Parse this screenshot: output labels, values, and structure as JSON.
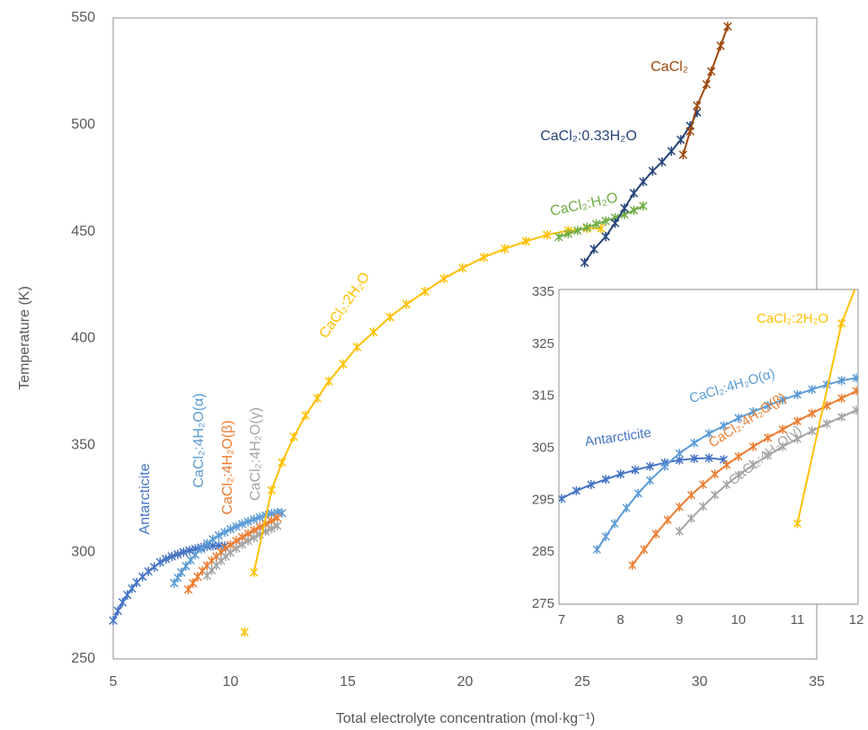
{
  "chart_data": [
    {
      "type": "scatter-line",
      "x_label": "Total electrolyte concentration (mol·kg⁻¹)",
      "y_label": "Temperature (K)",
      "xlim": [
        5,
        35
      ],
      "xticks": [
        5,
        10,
        15,
        20,
        25,
        30,
        35
      ],
      "ylim": [
        250,
        550
      ],
      "yticks": [
        250,
        300,
        350,
        400,
        450,
        500,
        550
      ],
      "series": [
        {
          "name": "Antarcticite",
          "color": "#4472c4",
          "x": [
            5.0,
            5.2,
            5.4,
            5.6,
            5.8,
            6.0,
            6.25,
            6.5,
            6.75,
            7.0,
            7.25,
            7.5,
            7.75,
            8.0,
            8.25,
            8.5,
            8.75,
            9.0,
            9.25,
            9.5,
            9.75
          ],
          "values": [
            268,
            272.5,
            276.5,
            280,
            283,
            285.8,
            288.5,
            291,
            293,
            295.3,
            296.8,
            298,
            299,
            300,
            300.8,
            301.5,
            302.2,
            302.7,
            303,
            303.1,
            302.8
          ]
        },
        {
          "name": "CaCl₂:4H₂O(α)",
          "color": "#5b9bd5",
          "x": [
            7.6,
            7.75,
            7.9,
            8.1,
            8.3,
            8.5,
            8.75,
            9.0,
            9.25,
            9.5,
            9.75,
            10.0,
            10.25,
            10.5,
            10.75,
            11.0,
            11.25,
            11.5,
            11.75,
            12.0,
            12.2
          ],
          "values": [
            285.5,
            288,
            290.5,
            293.5,
            296.3,
            298.8,
            301.5,
            304,
            306,
            307.8,
            309.3,
            310.8,
            312,
            313.2,
            314.3,
            315.3,
            316.3,
            317.2,
            318,
            318.5,
            318.3
          ]
        },
        {
          "name": "CaCl₂:4H₂O(β)",
          "color": "#ed7d31",
          "x": [
            8.2,
            8.4,
            8.6,
            8.8,
            9.0,
            9.2,
            9.4,
            9.6,
            9.8,
            10.0,
            10.25,
            10.5,
            10.75,
            11.0,
            11.25,
            11.5,
            11.75,
            12.0
          ],
          "values": [
            282.5,
            285.5,
            288.5,
            291.2,
            293.7,
            296,
            298,
            300,
            301.8,
            303.4,
            305.3,
            307,
            308.6,
            310.2,
            311.7,
            313.2,
            314.6,
            316
          ]
        },
        {
          "name": "CaCl₂:4H₂O(γ)",
          "color": "#a5a5a5",
          "x": [
            9.0,
            9.2,
            9.4,
            9.6,
            9.8,
            10.0,
            10.25,
            10.5,
            10.75,
            11.0,
            11.25,
            11.5,
            11.75,
            12.0
          ],
          "values": [
            289,
            291.5,
            293.8,
            296,
            298,
            299.8,
            301.8,
            303.6,
            305.3,
            306.8,
            308.3,
            309.7,
            311,
            312.3
          ]
        },
        {
          "name": "CaCl₂:2H₂O",
          "color": "#ffc000",
          "x": [
            10.6,
            null,
            11.0,
            11.75,
            12.2,
            12.7,
            13.2,
            13.7,
            14.2,
            14.8,
            15.4,
            16.1,
            16.8,
            17.5,
            18.3,
            19.1,
            19.9,
            20.8,
            21.7,
            22.6,
            23.5,
            24.4,
            25.2,
            25.8
          ],
          "values": [
            262.6,
            null,
            290.5,
            329,
            342,
            354,
            364,
            372,
            380,
            388,
            396,
            403,
            410,
            416,
            422,
            428,
            433,
            438,
            442,
            445.5,
            448.5,
            450.5,
            451.5,
            451.5
          ]
        },
        {
          "name": "CaCl₂:H₂O",
          "color": "#70ad47",
          "x": [
            24.0,
            24.4,
            24.8,
            25.2,
            25.6,
            26.0,
            26.4,
            26.8,
            27.2,
            27.6
          ],
          "values": [
            447.5,
            449,
            450.5,
            452,
            453.5,
            455,
            456.5,
            458,
            460,
            462
          ]
        },
        {
          "name": "CaCl₂:0.33H₂O",
          "color": "#264478",
          "x": [
            25.1,
            25.5,
            26.0,
            26.4,
            26.8,
            27.2,
            27.6,
            28.0,
            28.4,
            28.8,
            29.2,
            29.6,
            29.9
          ],
          "values": [
            435.5,
            441.8,
            447.7,
            454,
            461,
            468,
            473.4,
            478.4,
            482.6,
            487.7,
            493,
            499.5,
            505.8
          ]
        },
        {
          "name": "CaCl₂",
          "color": "#9e480e",
          "x": [
            29.3,
            29.6,
            29.9,
            30.3,
            30.5,
            30.9,
            31.2
          ],
          "values": [
            486,
            497,
            509,
            519,
            525,
            537,
            546
          ]
        }
      ]
    },
    {
      "type": "scatter-line",
      "xlim": [
        7,
        12
      ],
      "xticks": [
        7,
        8,
        9,
        10,
        11,
        12
      ],
      "ylim": [
        275,
        335
      ],
      "yticks": [
        275,
        285,
        295,
        305,
        315,
        325,
        335
      ],
      "series": [
        {
          "name": "Antarcticite",
          "color": "#4472c4",
          "x": [
            7.0,
            7.25,
            7.5,
            7.75,
            8.0,
            8.25,
            8.5,
            8.75,
            9.0,
            9.25,
            9.5,
            9.75
          ],
          "values": [
            295.3,
            296.8,
            298,
            299,
            300,
            300.8,
            301.5,
            302.2,
            302.7,
            303,
            303.1,
            302.8
          ]
        },
        {
          "name": "CaCl₂:4H₂O(α)",
          "color": "#5b9bd5",
          "x": [
            7.6,
            7.75,
            7.9,
            8.1,
            8.3,
            8.5,
            8.75,
            9.0,
            9.25,
            9.5,
            9.75,
            10.0,
            10.25,
            10.5,
            10.75,
            11.0,
            11.25,
            11.5,
            11.75,
            12.0
          ],
          "values": [
            285.5,
            288,
            290.5,
            293.5,
            296.3,
            298.8,
            301.5,
            304,
            306,
            307.8,
            309.3,
            310.8,
            312,
            313.2,
            314.3,
            315.3,
            316.3,
            317.2,
            318,
            318.5
          ]
        },
        {
          "name": "CaCl₂:4H₂O(β)",
          "color": "#ed7d31",
          "x": [
            8.2,
            8.4,
            8.6,
            8.8,
            9.0,
            9.2,
            9.4,
            9.6,
            9.8,
            10.0,
            10.25,
            10.5,
            10.75,
            11.0,
            11.25,
            11.5,
            11.75,
            12.0
          ],
          "values": [
            282.5,
            285.5,
            288.5,
            291.2,
            293.7,
            296,
            298,
            300,
            301.8,
            303.4,
            305.3,
            307,
            308.6,
            310.2,
            311.7,
            313.2,
            314.6,
            316
          ]
        },
        {
          "name": "CaCl₂:4H₂O(γ)",
          "color": "#a5a5a5",
          "x": [
            9.0,
            9.2,
            9.4,
            9.6,
            9.8,
            10.0,
            10.25,
            10.5,
            10.75,
            11.0,
            11.25,
            11.5,
            11.75,
            12.0
          ],
          "values": [
            289,
            291.5,
            293.8,
            296,
            298,
            299.8,
            301.8,
            303.6,
            305.3,
            306.8,
            308.3,
            309.7,
            311,
            312.3
          ]
        },
        {
          "name": "CaCl₂:2H₂O",
          "color": "#ffc000",
          "x": [
            11.0,
            11.75,
            12.2
          ],
          "values": [
            290.5,
            329,
            342
          ]
        }
      ]
    }
  ]
}
